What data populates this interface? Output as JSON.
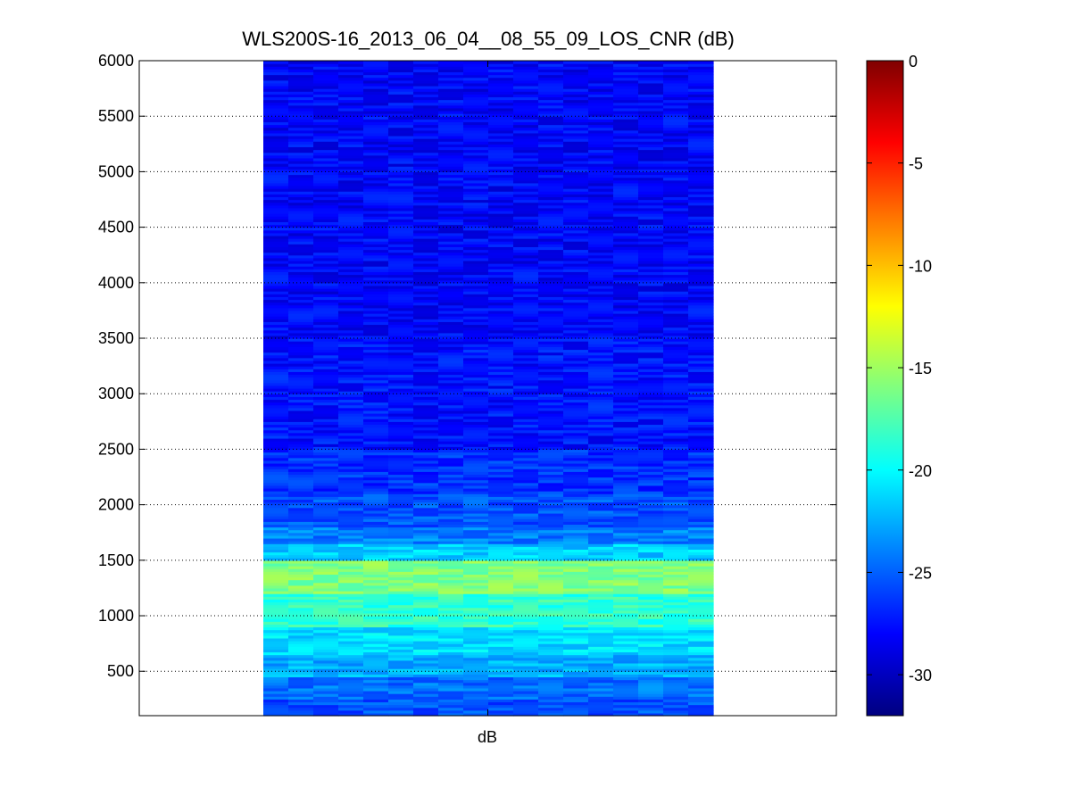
{
  "chart_data": {
    "type": "heatmap",
    "title": "WLS200S-16_2013_06_04__08_55_09_LOS_CNR (dB)",
    "xlabel": "dB",
    "ylabel": "",
    "ylim": [
      100,
      6000
    ],
    "yticks": [
      500,
      1000,
      1500,
      2000,
      2500,
      3000,
      3500,
      4000,
      4500,
      5000,
      5500,
      6000
    ],
    "grid": "y-dotted",
    "colormap": "jet",
    "colorbar": {
      "clim": [
        -32,
        0
      ],
      "ticks": [
        0,
        -5,
        -10,
        -15,
        -20,
        -25,
        -30
      ],
      "placement": "right"
    },
    "columns": 18,
    "rows": [
      {
        "y_from": 100,
        "y_to": 250,
        "value": -25.5
      },
      {
        "y_from": 250,
        "y_to": 450,
        "value": -24.5
      },
      {
        "y_from": 450,
        "y_to": 650,
        "value": -22.5
      },
      {
        "y_from": 650,
        "y_to": 900,
        "value": -21.0
      },
      {
        "y_from": 900,
        "y_to": 1200,
        "value": -18.5
      },
      {
        "y_from": 1200,
        "y_to": 1500,
        "value": -16.0
      },
      {
        "y_from": 1500,
        "y_to": 1650,
        "value": -21.5
      },
      {
        "y_from": 1650,
        "y_to": 1800,
        "value": -24.0
      },
      {
        "y_from": 1800,
        "y_to": 2100,
        "value": -25.5
      },
      {
        "y_from": 2100,
        "y_to": 2500,
        "value": -26.5
      },
      {
        "y_from": 2500,
        "y_to": 3500,
        "value": -27.5
      },
      {
        "y_from": 3500,
        "y_to": 6000,
        "value": -28.0
      }
    ]
  }
}
